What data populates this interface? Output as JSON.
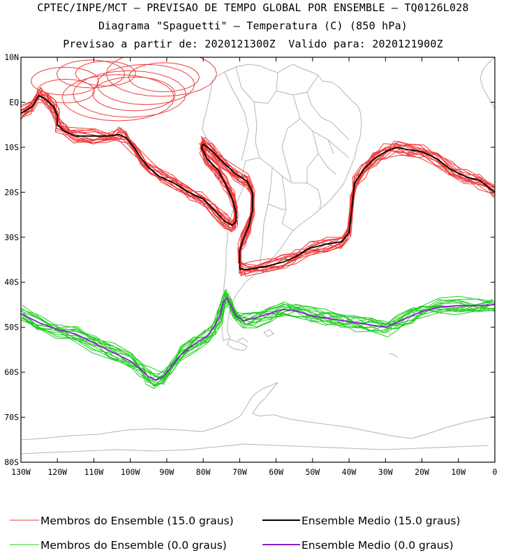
{
  "titles": [
    "CPTEC/INPE/MCT – PREVISAO DE TEMPO GLOBAL POR ENSEMBLE – TQ0126L028",
    "Diagrama \"Spaguetti\" – Temperatura (C) (850 hPa)",
    "Previsao a partir de: 2020121300Z  Valido para: 2020121900Z"
  ],
  "chart_data": {
    "type": "line",
    "title": "Diagrama \"Spaguetti\" – Temperatura (C) (850 hPa)",
    "xlim": [
      -130,
      0
    ],
    "ylim": [
      -80,
      10
    ],
    "x_ticks": [
      {
        "v": -130,
        "label": "130W"
      },
      {
        "v": -120,
        "label": "120W"
      },
      {
        "v": -110,
        "label": "110W"
      },
      {
        "v": -100,
        "label": "100W"
      },
      {
        "v": -90,
        "label": "90W"
      },
      {
        "v": -80,
        "label": "80W"
      },
      {
        "v": -70,
        "label": "70W"
      },
      {
        "v": -60,
        "label": "60W"
      },
      {
        "v": -50,
        "label": "50W"
      },
      {
        "v": -40,
        "label": "40W"
      },
      {
        "v": -30,
        "label": "30W"
      },
      {
        "v": -20,
        "label": "20W"
      },
      {
        "v": -10,
        "label": "10W"
      },
      {
        "v": 0,
        "label": "0"
      }
    ],
    "y_ticks": [
      {
        "v": 10,
        "label": "10N"
      },
      {
        "v": 0,
        "label": "EQ"
      },
      {
        "v": -10,
        "label": "10S"
      },
      {
        "v": -20,
        "label": "20S"
      },
      {
        "v": -30,
        "label": "30S"
      },
      {
        "v": -40,
        "label": "40S"
      },
      {
        "v": -50,
        "label": "50S"
      },
      {
        "v": -60,
        "label": "60S"
      },
      {
        "v": -70,
        "label": "70S"
      },
      {
        "v": -80,
        "label": "80S"
      }
    ],
    "colors": {
      "member15": "#ee3b3b",
      "mean15": "#000000",
      "member0": "#22cc22",
      "mean0": "#8a1fd0",
      "coast": "#b4b4b4"
    },
    "series": [
      {
        "name": "Ensemble Medio (15.0 graus)",
        "color": "#000000",
        "points": [
          [
            -130,
            -2.5
          ],
          [
            -127,
            -1
          ],
          [
            -125,
            1.5
          ],
          [
            -123,
            0.5
          ],
          [
            -121,
            -1
          ],
          [
            -120,
            -3
          ],
          [
            -120,
            -5
          ],
          [
            -118,
            -6.5
          ],
          [
            -115,
            -7.5
          ],
          [
            -110,
            -7.5
          ],
          [
            -106,
            -7.5
          ],
          [
            -103,
            -7.2
          ],
          [
            -101,
            -8
          ],
          [
            -99,
            -10
          ],
          [
            -97,
            -12.5
          ],
          [
            -95,
            -14.5
          ],
          [
            -92,
            -16.5
          ],
          [
            -88,
            -18
          ],
          [
            -84,
            -20
          ],
          [
            -80,
            -21.5
          ],
          [
            -77,
            -24
          ],
          [
            -74,
            -26.5
          ],
          [
            -72,
            -27.3
          ],
          [
            -71,
            -26.5
          ],
          [
            -71,
            -24.5
          ],
          [
            -72,
            -21.5
          ],
          [
            -74,
            -18
          ],
          [
            -76,
            -15
          ],
          [
            -79,
            -12.5
          ],
          [
            -80.5,
            -10
          ],
          [
            -80,
            -9.3
          ],
          [
            -78,
            -10.5
          ],
          [
            -75,
            -13
          ],
          [
            -71,
            -16
          ],
          [
            -68,
            -17.5
          ],
          [
            -66.5,
            -20
          ],
          [
            -66.5,
            -24
          ],
          [
            -67.5,
            -27.5
          ],
          [
            -69,
            -30.5
          ],
          [
            -70,
            -33
          ],
          [
            -70,
            -37
          ],
          [
            -68,
            -37.2
          ],
          [
            -63,
            -36.5
          ],
          [
            -58,
            -35.5
          ],
          [
            -55,
            -34.5
          ],
          [
            -51,
            -32.5
          ],
          [
            -46,
            -31.5
          ],
          [
            -42,
            -31
          ],
          [
            -40,
            -29
          ],
          [
            -39,
            -22
          ],
          [
            -38.5,
            -18
          ],
          [
            -36,
            -15
          ],
          [
            -33,
            -12.5
          ],
          [
            -30,
            -11
          ],
          [
            -27,
            -10
          ],
          [
            -24,
            -10.5
          ],
          [
            -20,
            -11
          ],
          [
            -16,
            -12.5
          ],
          [
            -12,
            -15
          ],
          [
            -8,
            -16.5
          ],
          [
            -4,
            -17.5
          ],
          [
            0,
            -20
          ]
        ]
      },
      {
        "name": "Ensemble Medio (0.0 graus)",
        "color": "#8a1fd0",
        "points": [
          [
            -130,
            -47
          ],
          [
            -125,
            -49
          ],
          [
            -120,
            -50.5
          ],
          [
            -115,
            -51.5
          ],
          [
            -110,
            -53.5
          ],
          [
            -105,
            -55.5
          ],
          [
            -100,
            -57.5
          ],
          [
            -97,
            -59.5
          ],
          [
            -95,
            -61
          ],
          [
            -93,
            -61.7
          ],
          [
            -91,
            -61
          ],
          [
            -89,
            -59
          ],
          [
            -86,
            -56
          ],
          [
            -82,
            -53.5
          ],
          [
            -79,
            -52
          ],
          [
            -77,
            -50
          ],
          [
            -75.5,
            -47.5
          ],
          [
            -74.5,
            -44.5
          ],
          [
            -73.5,
            -43.5
          ],
          [
            -72.5,
            -45
          ],
          [
            -71,
            -47.5
          ],
          [
            -69,
            -48.5
          ],
          [
            -66,
            -48
          ],
          [
            -62,
            -47
          ],
          [
            -58,
            -46
          ],
          [
            -54,
            -46.5
          ],
          [
            -50,
            -47.5
          ],
          [
            -46,
            -48
          ],
          [
            -42,
            -48.5
          ],
          [
            -38,
            -49
          ],
          [
            -34,
            -49.5
          ],
          [
            -30,
            -50
          ],
          [
            -27,
            -49
          ],
          [
            -23,
            -47.5
          ],
          [
            -20,
            -46.5
          ],
          [
            -15,
            -45.5
          ],
          [
            -10,
            -45.2
          ],
          [
            -5,
            -45.2
          ],
          [
            0,
            -45
          ]
        ]
      }
    ]
  },
  "legend": {
    "member15": "Membros do Ensemble (15.0 graus)",
    "mean15": "Ensemble Medio (15.0 graus)",
    "member0": "Membros do Ensemble (0.0 graus)",
    "mean0": "Ensemble Medio (0.0 graus)"
  }
}
